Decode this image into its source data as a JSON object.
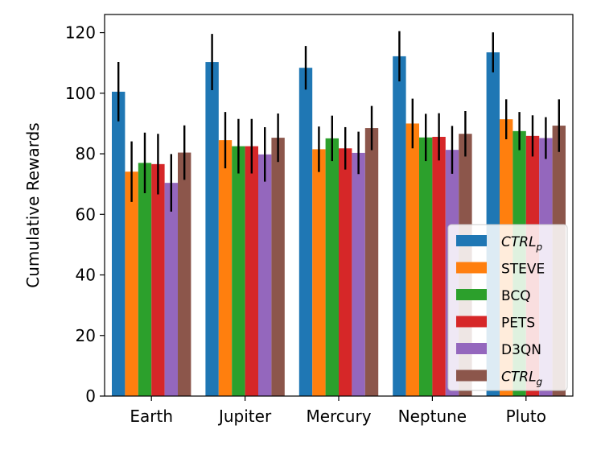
{
  "chart_data": {
    "type": "bar",
    "title": "",
    "xlabel": "",
    "ylabel": "Cumulative Rewards",
    "ylim": [
      0,
      126
    ],
    "yticks": [
      0,
      20,
      40,
      60,
      80,
      100,
      120
    ],
    "categories": [
      "Earth",
      "Jupiter",
      "Mercury",
      "Neptune",
      "Pluto"
    ],
    "series": [
      {
        "name": "CTRL",
        "name_sub": "p",
        "italic": true,
        "color": "#1f77b4",
        "values": [
          100.5,
          110.3,
          108.4,
          112.2,
          113.5
        ],
        "errors": [
          9.8,
          9.3,
          7.2,
          8.3,
          6.6
        ]
      },
      {
        "name": "STEVE",
        "name_sub": "",
        "italic": false,
        "color": "#ff7f0e",
        "values": [
          74.1,
          84.5,
          81.5,
          90.0,
          91.4
        ],
        "errors": [
          10.0,
          9.3,
          7.5,
          8.2,
          6.6
        ]
      },
      {
        "name": "BCQ",
        "name_sub": "",
        "italic": false,
        "color": "#2ca02c",
        "values": [
          77.0,
          82.5,
          85.1,
          85.4,
          87.5
        ],
        "errors": [
          10.0,
          9.0,
          7.5,
          7.8,
          6.3
        ]
      },
      {
        "name": "PETS",
        "name_sub": "",
        "italic": false,
        "color": "#d62728",
        "values": [
          76.6,
          82.5,
          81.8,
          85.6,
          85.9
        ],
        "errors": [
          10.0,
          9.0,
          7.0,
          7.8,
          6.8
        ]
      },
      {
        "name": "D3QN",
        "name_sub": "",
        "italic": false,
        "color": "#9467bd",
        "values": [
          70.4,
          79.8,
          80.3,
          81.3,
          85.2
        ],
        "errors": [
          9.5,
          9.0,
          7.0,
          7.9,
          6.9
        ]
      },
      {
        "name": "CTRL",
        "name_sub": "g",
        "italic": true,
        "color": "#8c564b",
        "values": [
          80.4,
          85.3,
          88.5,
          86.6,
          89.3
        ],
        "errors": [
          9.0,
          8.0,
          7.3,
          7.5,
          8.7
        ]
      }
    ],
    "grid": false,
    "legend_position": "lower-right",
    "error_bar_color": "#000000"
  }
}
